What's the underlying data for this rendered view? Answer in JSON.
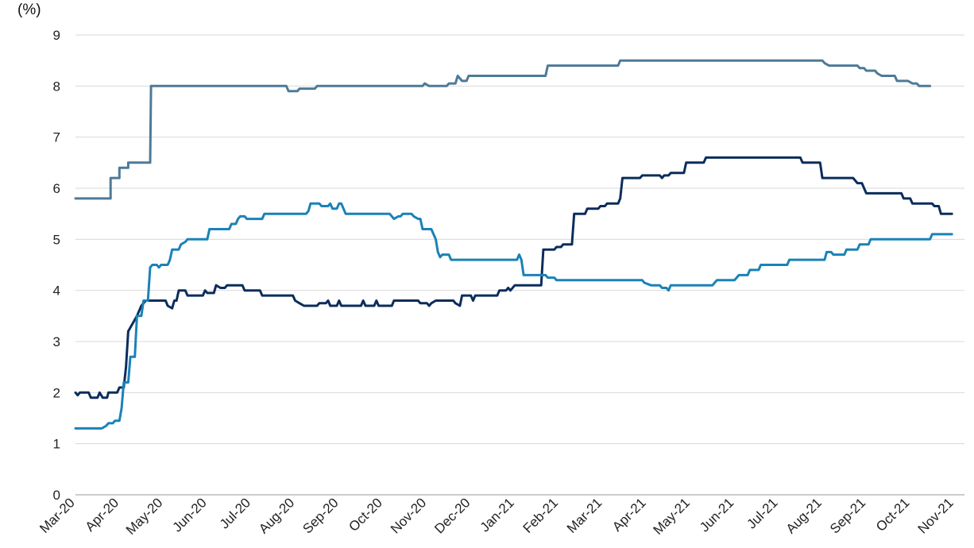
{
  "chart_data": {
    "type": "line",
    "title": "",
    "xlabel": "",
    "ylabel": "(%)",
    "ylim": [
      0,
      9
    ],
    "yticks": [
      "0",
      "1",
      "2",
      "3",
      "4",
      "5",
      "6",
      "7",
      "8",
      "9"
    ],
    "x_tick_labels": [
      "Mar-20",
      "Apr-20",
      "May-20",
      "Jun-20",
      "Jul-20",
      "Aug-20",
      "Sep-20",
      "Oct-20",
      "Nov-20",
      "Dec-20",
      "Jan-21",
      "Feb-21",
      "Mar-21",
      "Apr-21",
      "May-21",
      "Jun-21",
      "Jul-21",
      "Aug-21",
      "Sep-21",
      "Oct-21",
      "Nov-21"
    ],
    "grid": true,
    "legend": "none",
    "series": [
      {
        "color": "#4d7a99",
        "points": [
          [
            0,
            5.8
          ],
          [
            0.8,
            5.8
          ],
          [
            0.8,
            6.2
          ],
          [
            1.0,
            6.2
          ],
          [
            1.0,
            6.4
          ],
          [
            1.2,
            6.4
          ],
          [
            1.2,
            6.5
          ],
          [
            1.7,
            6.5
          ],
          [
            1.72,
            8.0
          ],
          [
            4.8,
            8.0
          ],
          [
            4.85,
            7.9
          ],
          [
            5.05,
            7.9
          ],
          [
            5.1,
            7.95
          ],
          [
            5.45,
            7.95
          ],
          [
            5.5,
            8.0
          ],
          [
            7.9,
            8.0
          ],
          [
            7.95,
            8.05
          ],
          [
            8.05,
            8.0
          ],
          [
            8.45,
            8.0
          ],
          [
            8.5,
            8.05
          ],
          [
            8.65,
            8.05
          ],
          [
            8.7,
            8.2
          ],
          [
            8.8,
            8.1
          ],
          [
            8.9,
            8.1
          ],
          [
            8.95,
            8.2
          ],
          [
            10.7,
            8.2
          ],
          [
            10.75,
            8.4
          ],
          [
            12.35,
            8.4
          ],
          [
            12.4,
            8.5
          ],
          [
            17.0,
            8.5
          ],
          [
            17.05,
            8.45
          ],
          [
            17.15,
            8.4
          ],
          [
            17.8,
            8.4
          ],
          [
            17.85,
            8.35
          ],
          [
            17.95,
            8.35
          ],
          [
            18.0,
            8.3
          ],
          [
            18.2,
            8.3
          ],
          [
            18.25,
            8.25
          ],
          [
            18.35,
            8.2
          ],
          [
            18.65,
            8.2
          ],
          [
            18.7,
            8.1
          ],
          [
            18.95,
            8.1
          ],
          [
            19.05,
            8.05
          ],
          [
            19.15,
            8.05
          ],
          [
            19.2,
            8.0
          ],
          [
            19.45,
            8.0
          ]
        ]
      },
      {
        "color": "#0b2d5c",
        "points": [
          [
            0,
            2.0
          ],
          [
            0.05,
            1.95
          ],
          [
            0.1,
            2.0
          ],
          [
            0.3,
            2.0
          ],
          [
            0.35,
            1.9
          ],
          [
            0.5,
            1.9
          ],
          [
            0.55,
            2.0
          ],
          [
            0.62,
            1.9
          ],
          [
            0.72,
            1.9
          ],
          [
            0.75,
            2.0
          ],
          [
            0.95,
            2.0
          ],
          [
            1.0,
            2.1
          ],
          [
            1.1,
            2.1
          ],
          [
            1.15,
            2.5
          ],
          [
            1.2,
            3.2
          ],
          [
            1.3,
            3.35
          ],
          [
            1.4,
            3.5
          ],
          [
            1.5,
            3.7
          ],
          [
            1.6,
            3.8
          ],
          [
            2.05,
            3.8
          ],
          [
            2.1,
            3.7
          ],
          [
            2.2,
            3.65
          ],
          [
            2.25,
            3.8
          ],
          [
            2.3,
            3.8
          ],
          [
            2.35,
            4.0
          ],
          [
            2.5,
            4.0
          ],
          [
            2.55,
            3.9
          ],
          [
            2.9,
            3.9
          ],
          [
            2.95,
            4.0
          ],
          [
            3.0,
            3.95
          ],
          [
            3.15,
            3.95
          ],
          [
            3.2,
            4.1
          ],
          [
            3.3,
            4.05
          ],
          [
            3.4,
            4.05
          ],
          [
            3.45,
            4.1
          ],
          [
            3.8,
            4.1
          ],
          [
            3.85,
            4.0
          ],
          [
            4.2,
            4.0
          ],
          [
            4.25,
            3.9
          ],
          [
            4.95,
            3.9
          ],
          [
            5.0,
            3.8
          ],
          [
            5.1,
            3.75
          ],
          [
            5.2,
            3.7
          ],
          [
            5.5,
            3.7
          ],
          [
            5.55,
            3.75
          ],
          [
            5.7,
            3.75
          ],
          [
            5.75,
            3.8
          ],
          [
            5.8,
            3.7
          ],
          [
            5.95,
            3.7
          ],
          [
            6.0,
            3.8
          ],
          [
            6.05,
            3.7
          ],
          [
            6.5,
            3.7
          ],
          [
            6.55,
            3.8
          ],
          [
            6.6,
            3.7
          ],
          [
            6.8,
            3.7
          ],
          [
            6.85,
            3.8
          ],
          [
            6.9,
            3.7
          ],
          [
            7.2,
            3.7
          ],
          [
            7.25,
            3.8
          ],
          [
            7.8,
            3.8
          ],
          [
            7.85,
            3.75
          ],
          [
            8.0,
            3.75
          ],
          [
            8.05,
            3.7
          ],
          [
            8.1,
            3.75
          ],
          [
            8.2,
            3.8
          ],
          [
            8.6,
            3.8
          ],
          [
            8.65,
            3.75
          ],
          [
            8.75,
            3.7
          ],
          [
            8.8,
            3.9
          ],
          [
            9.0,
            3.9
          ],
          [
            9.05,
            3.8
          ],
          [
            9.1,
            3.9
          ],
          [
            9.6,
            3.9
          ],
          [
            9.65,
            4.0
          ],
          [
            9.8,
            4.0
          ],
          [
            9.85,
            4.05
          ],
          [
            9.9,
            4.0
          ],
          [
            10.0,
            4.1
          ],
          [
            10.6,
            4.1
          ],
          [
            10.65,
            4.8
          ],
          [
            10.9,
            4.8
          ],
          [
            10.95,
            4.85
          ],
          [
            11.05,
            4.85
          ],
          [
            11.1,
            4.9
          ],
          [
            11.3,
            4.9
          ],
          [
            11.35,
            5.5
          ],
          [
            11.6,
            5.5
          ],
          [
            11.65,
            5.6
          ],
          [
            11.9,
            5.6
          ],
          [
            11.95,
            5.65
          ],
          [
            12.05,
            5.65
          ],
          [
            12.1,
            5.7
          ],
          [
            12.35,
            5.7
          ],
          [
            12.4,
            5.8
          ],
          [
            12.45,
            6.2
          ],
          [
            12.85,
            6.2
          ],
          [
            12.9,
            6.25
          ],
          [
            13.3,
            6.25
          ],
          [
            13.35,
            6.2
          ],
          [
            13.4,
            6.25
          ],
          [
            13.5,
            6.25
          ],
          [
            13.55,
            6.3
          ],
          [
            13.85,
            6.3
          ],
          [
            13.9,
            6.5
          ],
          [
            14.3,
            6.5
          ],
          [
            14.35,
            6.6
          ],
          [
            16.5,
            6.6
          ],
          [
            16.55,
            6.5
          ],
          [
            16.95,
            6.5
          ],
          [
            17.0,
            6.2
          ],
          [
            17.7,
            6.2
          ],
          [
            17.8,
            6.1
          ],
          [
            17.9,
            6.1
          ],
          [
            18.0,
            5.9
          ],
          [
            18.8,
            5.9
          ],
          [
            18.85,
            5.8
          ],
          [
            19.0,
            5.8
          ],
          [
            19.05,
            5.7
          ],
          [
            19.5,
            5.7
          ],
          [
            19.55,
            5.65
          ],
          [
            19.65,
            5.65
          ],
          [
            19.7,
            5.5
          ],
          [
            19.95,
            5.5
          ]
        ]
      },
      {
        "color": "#1a82b8",
        "points": [
          [
            0,
            1.3
          ],
          [
            0.6,
            1.3
          ],
          [
            0.7,
            1.35
          ],
          [
            0.75,
            1.4
          ],
          [
            0.85,
            1.4
          ],
          [
            0.9,
            1.45
          ],
          [
            1.0,
            1.45
          ],
          [
            1.05,
            1.7
          ],
          [
            1.1,
            2.2
          ],
          [
            1.2,
            2.2
          ],
          [
            1.25,
            2.7
          ],
          [
            1.35,
            2.7
          ],
          [
            1.4,
            3.5
          ],
          [
            1.5,
            3.5
          ],
          [
            1.55,
            3.8
          ],
          [
            1.65,
            3.8
          ],
          [
            1.7,
            4.45
          ],
          [
            1.75,
            4.5
          ],
          [
            1.85,
            4.5
          ],
          [
            1.9,
            4.45
          ],
          [
            1.95,
            4.5
          ],
          [
            2.1,
            4.5
          ],
          [
            2.15,
            4.6
          ],
          [
            2.2,
            4.8
          ],
          [
            2.35,
            4.8
          ],
          [
            2.4,
            4.9
          ],
          [
            2.5,
            4.95
          ],
          [
            2.55,
            5.0
          ],
          [
            3.0,
            5.0
          ],
          [
            3.05,
            5.2
          ],
          [
            3.5,
            5.2
          ],
          [
            3.55,
            5.3
          ],
          [
            3.65,
            5.3
          ],
          [
            3.7,
            5.4
          ],
          [
            3.75,
            5.45
          ],
          [
            3.85,
            5.45
          ],
          [
            3.9,
            5.4
          ],
          [
            4.25,
            5.4
          ],
          [
            4.3,
            5.5
          ],
          [
            5.25,
            5.5
          ],
          [
            5.3,
            5.55
          ],
          [
            5.35,
            5.7
          ],
          [
            5.55,
            5.7
          ],
          [
            5.6,
            5.65
          ],
          [
            5.75,
            5.65
          ],
          [
            5.8,
            5.7
          ],
          [
            5.85,
            5.6
          ],
          [
            5.95,
            5.6
          ],
          [
            6.0,
            5.7
          ],
          [
            6.05,
            5.7
          ],
          [
            6.15,
            5.5
          ],
          [
            7.15,
            5.5
          ],
          [
            7.2,
            5.45
          ],
          [
            7.25,
            5.4
          ],
          [
            7.35,
            5.45
          ],
          [
            7.4,
            5.45
          ],
          [
            7.45,
            5.5
          ],
          [
            7.65,
            5.5
          ],
          [
            7.7,
            5.45
          ],
          [
            7.8,
            5.4
          ],
          [
            7.85,
            5.4
          ],
          [
            7.9,
            5.2
          ],
          [
            8.1,
            5.2
          ],
          [
            8.15,
            5.1
          ],
          [
            8.2,
            5.0
          ],
          [
            8.25,
            4.75
          ],
          [
            8.3,
            4.65
          ],
          [
            8.35,
            4.7
          ],
          [
            8.5,
            4.7
          ],
          [
            8.55,
            4.6
          ],
          [
            10.05,
            4.6
          ],
          [
            10.1,
            4.7
          ],
          [
            10.15,
            4.6
          ],
          [
            10.2,
            4.3
          ],
          [
            10.7,
            4.3
          ],
          [
            10.75,
            4.25
          ],
          [
            10.9,
            4.25
          ],
          [
            10.95,
            4.2
          ],
          [
            12.9,
            4.2
          ],
          [
            12.95,
            4.15
          ],
          [
            13.1,
            4.1
          ],
          [
            13.3,
            4.1
          ],
          [
            13.35,
            4.05
          ],
          [
            13.45,
            4.05
          ],
          [
            13.5,
            4.0
          ],
          [
            13.55,
            4.1
          ],
          [
            14.5,
            4.1
          ],
          [
            14.55,
            4.15
          ],
          [
            14.6,
            4.2
          ],
          [
            15.0,
            4.2
          ],
          [
            15.05,
            4.25
          ],
          [
            15.1,
            4.3
          ],
          [
            15.3,
            4.3
          ],
          [
            15.35,
            4.4
          ],
          [
            15.55,
            4.4
          ],
          [
            15.6,
            4.5
          ],
          [
            16.2,
            4.5
          ],
          [
            16.25,
            4.6
          ],
          [
            17.05,
            4.6
          ],
          [
            17.1,
            4.75
          ],
          [
            17.2,
            4.75
          ],
          [
            17.25,
            4.7
          ],
          [
            17.5,
            4.7
          ],
          [
            17.55,
            4.8
          ],
          [
            17.8,
            4.8
          ],
          [
            17.85,
            4.9
          ],
          [
            18.05,
            4.9
          ],
          [
            18.1,
            5.0
          ],
          [
            19.45,
            5.0
          ],
          [
            19.5,
            5.1
          ],
          [
            19.95,
            5.1
          ]
        ]
      }
    ]
  }
}
